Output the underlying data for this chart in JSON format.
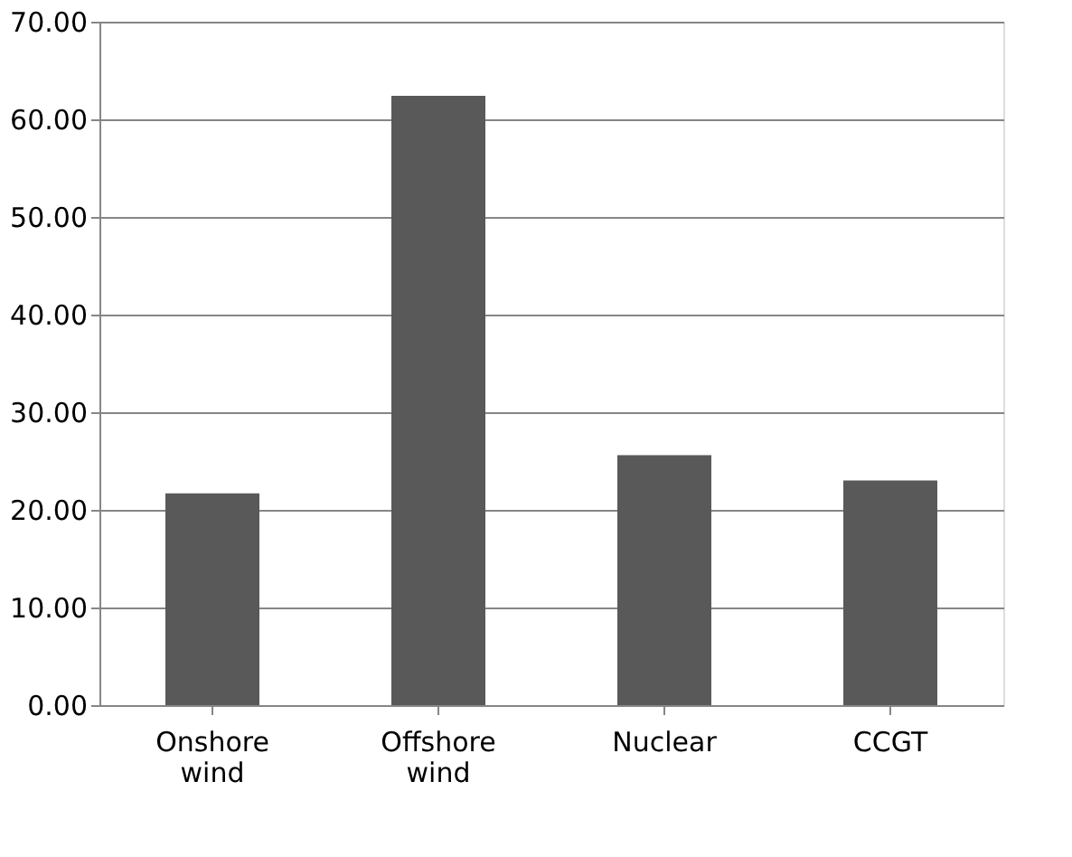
{
  "chart_data": {
    "type": "bar",
    "categories": [
      "Onshore wind",
      "Offshore wind",
      "Nuclear",
      "CCGT"
    ],
    "values": [
      21.7,
      62.4,
      25.6,
      23.0
    ],
    "color": "#595959",
    "ylim": [
      0,
      70
    ],
    "yticks": [
      {
        "value": 0,
        "label": "0.00"
      },
      {
        "value": 10,
        "label": "10.00"
      },
      {
        "value": 20,
        "label": "20.00"
      },
      {
        "value": 30,
        "label": "30.00"
      },
      {
        "value": 40,
        "label": "40.00"
      },
      {
        "value": 50,
        "label": "50.00"
      },
      {
        "value": 60,
        "label": "60.00"
      },
      {
        "value": 70,
        "label": "70.00"
      }
    ],
    "grid": "y"
  }
}
